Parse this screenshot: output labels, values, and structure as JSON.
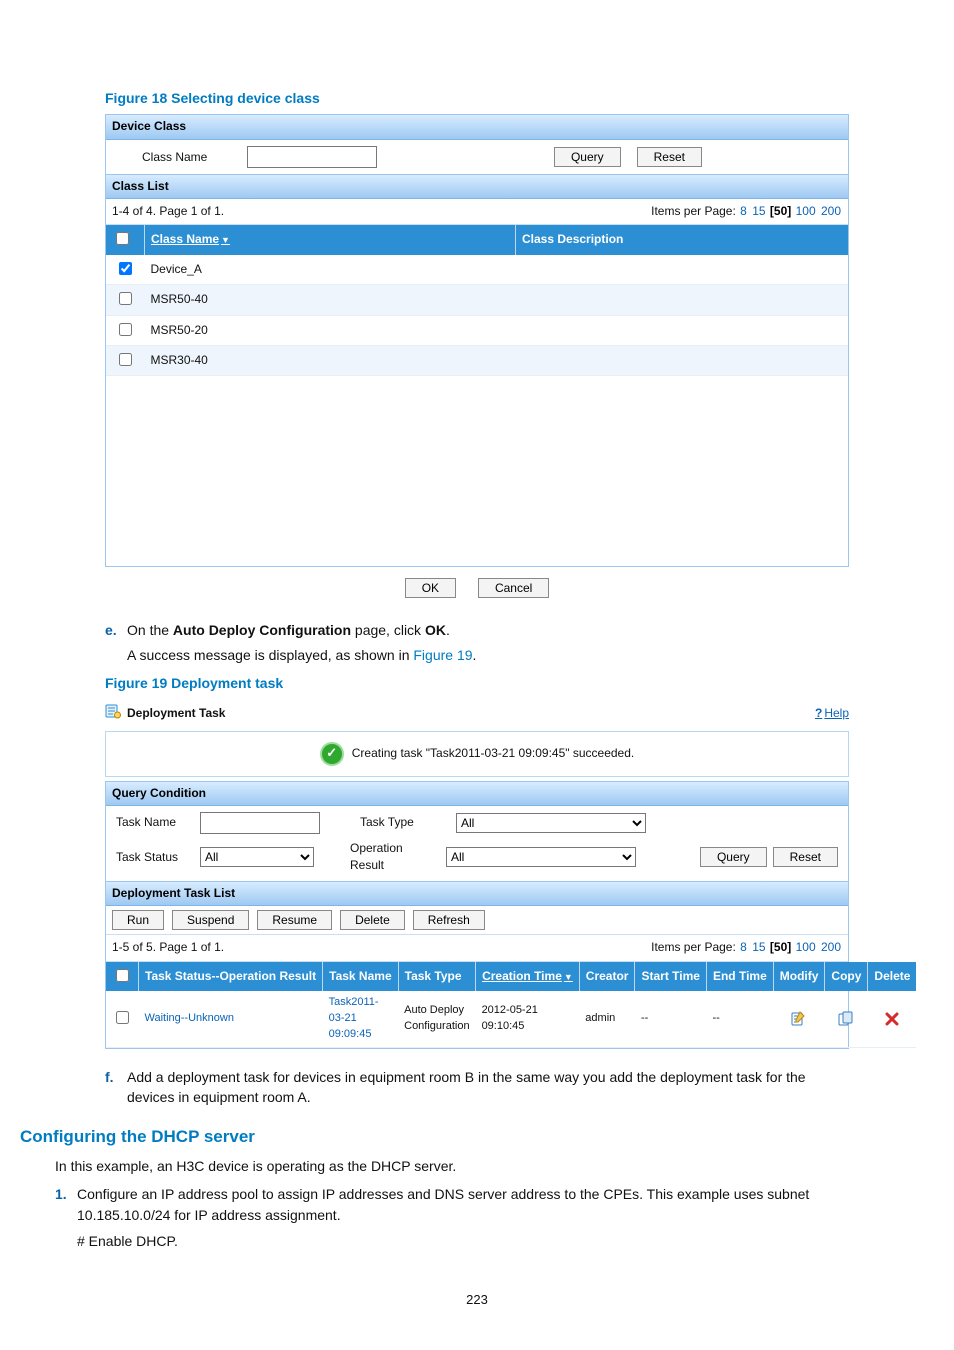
{
  "page_number": "223",
  "figure18": {
    "caption": "Figure 18 Selecting device class",
    "panel_title": "Device Class",
    "class_name_label": "Class Name",
    "query_btn": "Query",
    "reset_btn": "Reset",
    "list_title": "Class List",
    "paging_text": "1-4 of 4. Page 1 of 1.",
    "ipp_label": "Items per Page:",
    "ipp_options": [
      "8",
      "15",
      "[50]",
      "100",
      "200"
    ],
    "columns": {
      "name": "Class Name",
      "desc": "Class Description"
    },
    "rows": [
      {
        "checked": true,
        "name": "Device_A",
        "desc": ""
      },
      {
        "checked": false,
        "name": "MSR50-40",
        "desc": ""
      },
      {
        "checked": false,
        "name": "MSR50-20",
        "desc": ""
      },
      {
        "checked": false,
        "name": "MSR30-40",
        "desc": ""
      }
    ],
    "ok_btn": "OK",
    "cancel_btn": "Cancel"
  },
  "step_e": {
    "letter": "e.",
    "line1_pre": "On the ",
    "line1_bold": "Auto Deploy Configuration",
    "line1_mid": " page, click ",
    "line1_bold2": "OK",
    "line1_end": ".",
    "line2_pre": "A success message is displayed, as shown in ",
    "line2_link": "Figure 19",
    "line2_end": "."
  },
  "figure19": {
    "caption": "Figure 19 Deployment task",
    "title": "Deployment Task",
    "help_label": "Help",
    "success_msg": "Creating task \"Task2011-03-21 09:09:45\" succeeded.",
    "query_title": "Query Condition",
    "task_name_label": "Task Name",
    "task_type_label": "Task Type",
    "task_type_value": "All",
    "task_status_label": "Task Status",
    "task_status_value": "All",
    "op_result_label": "Operation Result",
    "op_result_value": "All",
    "query_btn": "Query",
    "reset_btn": "Reset",
    "list_title": "Deployment Task List",
    "tool_buttons": [
      "Run",
      "Suspend",
      "Resume",
      "Delete",
      "Refresh"
    ],
    "paging_text": "1-5 of 5. Page 1 of 1.",
    "ipp_label": "Items per Page:",
    "ipp_options": [
      "8",
      "15",
      "[50]",
      "100",
      "200"
    ],
    "columns": {
      "status": "Task Status--Operation Result",
      "name": "Task Name",
      "type": "Task Type",
      "ctime": "Creation Time",
      "creator": "Creator",
      "stime": "Start Time",
      "etime": "End Time",
      "modify": "Modify",
      "copy": "Copy",
      "delete": "Delete"
    },
    "row": {
      "status": "Waiting--Unknown",
      "name": "Task2011-03-21 09:09:45",
      "type": "Auto Deploy Configuration",
      "ctime": "2012-05-21 09:10:45",
      "creator": "admin",
      "stime": "--",
      "etime": "--"
    }
  },
  "step_f": {
    "letter": "f.",
    "text": "Add a deployment task for devices in equipment room B in the same way you add the deployment task for the devices in equipment room A."
  },
  "dhcp": {
    "heading": "Configuring the DHCP server",
    "intro": "In this example, an H3C device is operating as the DHCP server.",
    "item1_num": "1.",
    "item1_text": "Configure an IP address pool to assign IP addresses and DNS server address to the CPEs. This example uses subnet 10.185.10.0/24 for IP address assignment.",
    "item1_sub": "# Enable DHCP."
  }
}
